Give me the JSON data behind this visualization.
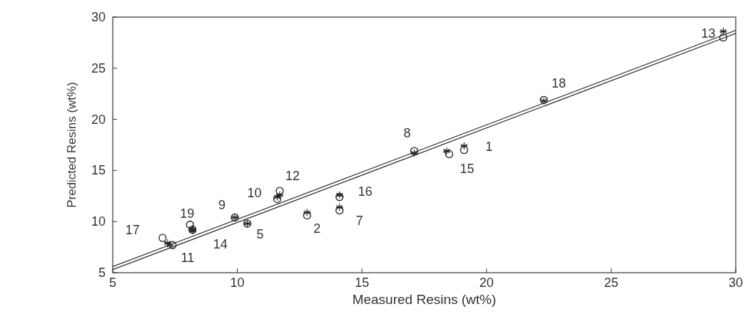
{
  "chart_data": {
    "type": "scatter",
    "xlabel": "Measured Resins (wt%)",
    "ylabel": "Predicted Resins (wt%)",
    "xlim": [
      5,
      30
    ],
    "ylim": [
      5,
      30
    ],
    "xticks": [
      5,
      10,
      15,
      20,
      25,
      30
    ],
    "yticks": [
      5,
      10,
      15,
      20,
      25,
      30
    ],
    "series": [
      {
        "marker": "circle",
        "color": "#222222",
        "x": [
          19.1,
          12.8,
          10.4,
          14.1,
          17.1,
          9.9,
          11.6,
          7.4,
          11.7,
          29.5,
          8.2,
          18.5,
          14.1,
          7.0,
          22.3,
          8.1
        ],
        "values": [
          17.0,
          10.6,
          9.8,
          11.1,
          16.9,
          10.4,
          12.2,
          7.7,
          13.0,
          28.0,
          9.2,
          16.6,
          12.4,
          8.4,
          21.9,
          9.7
        ]
      },
      {
        "marker": "cross",
        "color": "#222222",
        "x": [
          19.1,
          12.8,
          10.4,
          14.1,
          17.1,
          9.9,
          11.6,
          7.3,
          11.7,
          29.5,
          8.2,
          18.4,
          14.1,
          7.2,
          22.3,
          8.2
        ],
        "values": [
          17.4,
          10.9,
          9.8,
          11.4,
          16.7,
          10.4,
          12.4,
          7.7,
          12.6,
          28.6,
          9.1,
          16.9,
          12.6,
          7.9,
          21.8,
          9.3
        ]
      },
      {
        "type": "line",
        "line_style": "solid",
        "marker": "none",
        "color": "#333333",
        "x": [
          5,
          30
        ],
        "values": [
          5.6,
          28.7
        ]
      },
      {
        "type": "line",
        "line_style": "solid",
        "marker": "none",
        "color": "#333333",
        "x": [
          5,
          30
        ],
        "values": [
          5.3,
          28.4
        ]
      }
    ],
    "annotations": [
      {
        "text": "1",
        "x": 19.1,
        "y": 17.0
      },
      {
        "text": "2",
        "x": 12.8,
        "y": 10.6
      },
      {
        "text": "5",
        "x": 10.4,
        "y": 9.8
      },
      {
        "text": "7",
        "x": 14.1,
        "y": 11.1
      },
      {
        "text": "8",
        "x": 17.1,
        "y": 16.9
      },
      {
        "text": "9",
        "x": 9.9,
        "y": 10.4
      },
      {
        "text": "10",
        "x": 11.6,
        "y": 12.2
      },
      {
        "text": "11",
        "x": 7.4,
        "y": 7.7
      },
      {
        "text": "12",
        "x": 11.7,
        "y": 13.0
      },
      {
        "text": "13",
        "x": 29.5,
        "y": 28.0
      },
      {
        "text": "14",
        "x": 8.2,
        "y": 9.2
      },
      {
        "text": "15",
        "x": 18.5,
        "y": 16.6
      },
      {
        "text": "16",
        "x": 14.1,
        "y": 12.4
      },
      {
        "text": "17",
        "x": 7.0,
        "y": 8.4
      },
      {
        "text": "18",
        "x": 22.3,
        "y": 21.9
      },
      {
        "text": "19",
        "x": 8.1,
        "y": 9.7
      }
    ]
  }
}
